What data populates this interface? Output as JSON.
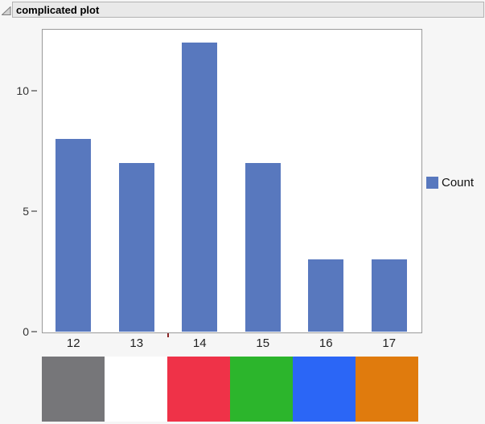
{
  "report": {
    "title": "complicated plot",
    "disclosure_state": "open"
  },
  "chart_data": {
    "type": "bar",
    "title": "complicated plot",
    "categories": [
      "12",
      "13",
      "14",
      "15",
      "16",
      "17"
    ],
    "series": [
      {
        "name": "Count",
        "values": [
          8,
          7,
          12,
          7,
          3,
          3
        ]
      }
    ],
    "xlabel": "",
    "ylabel": "",
    "ylim": [
      0,
      12.5
    ],
    "yticks": [
      0,
      5,
      10
    ],
    "grid": false,
    "bar_color": "#5878BE",
    "legend": {
      "entries": [
        "Count"
      ],
      "position": "right"
    },
    "annotations": [
      {
        "type": "axis-tick",
        "axis": "x",
        "between": [
          "13",
          "14"
        ],
        "color": "#8B2424"
      }
    ]
  },
  "legend": {
    "label": "Count",
    "swatch_color": "#5878BE"
  },
  "swatch_strip": {
    "cells": [
      {
        "name": "gray",
        "color": "#767679"
      },
      {
        "name": "white",
        "color": "#FFFFFF"
      },
      {
        "name": "red",
        "color": "#EF3248"
      },
      {
        "name": "green",
        "color": "#2CB52C"
      },
      {
        "name": "blue",
        "color": "#2B66F6"
      },
      {
        "name": "orange",
        "color": "#E07B0D"
      }
    ]
  },
  "colors": {
    "page_background": "#F6F6F6",
    "titlebar_background": "#E9E9E9",
    "titlebar_border": "#B3B3B3",
    "plot_border": "#9A9A9A",
    "axis_text": "#333333",
    "tick_mark": "#8C8C8C"
  }
}
